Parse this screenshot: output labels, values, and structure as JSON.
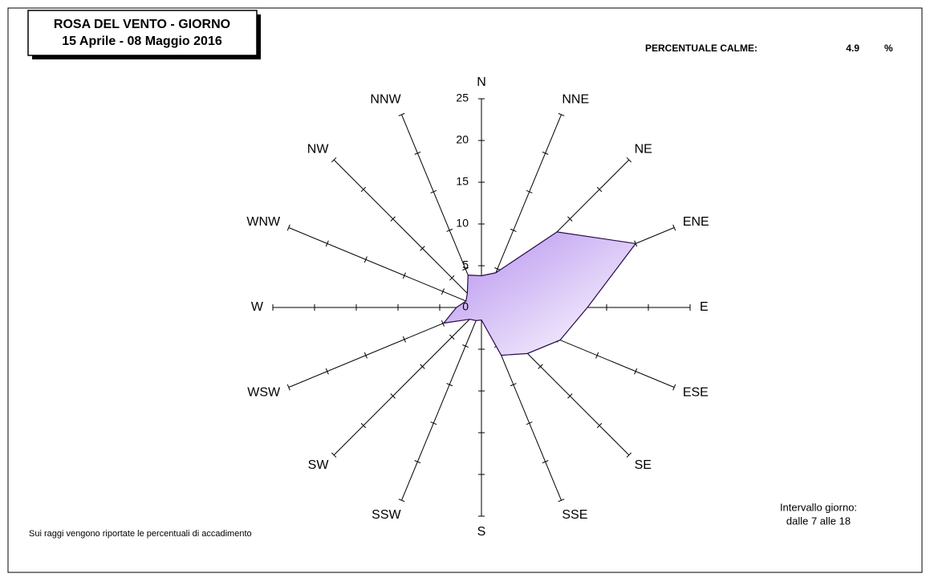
{
  "chart_data": {
    "type": "radar",
    "title": "ROSA DEL VENTO - GIORNO",
    "subtitle": "15 Aprile - 08 Maggio 2016",
    "calm_label": "PERCENTUALE CALME:",
    "calm_value": 4.9,
    "calm_unit": "%",
    "footnote": "Sui raggi vengono riportate le percentuali di accadimento",
    "interval_title": "Intervallo giorno:",
    "interval_text": "dalle 7 alle 18",
    "categories": [
      "N",
      "NNE",
      "NE",
      "ENE",
      "E",
      "ESE",
      "SE",
      "SSE",
      "S",
      "SSW",
      "SW",
      "WSW",
      "W",
      "WNW",
      "NW",
      "NNW"
    ],
    "series": [
      {
        "name": "Frequenza",
        "color": "#b48eee",
        "values": [
          3.8,
          4.5,
          12.8,
          20,
          12.7,
          10.2,
          7.8,
          6.2,
          1.5,
          1.7,
          2,
          4.9,
          3,
          2,
          2.4,
          4.2
        ]
      }
    ],
    "ylim": [
      0,
      25
    ],
    "yticks": [
      0,
      5,
      10,
      15,
      20,
      25
    ]
  }
}
